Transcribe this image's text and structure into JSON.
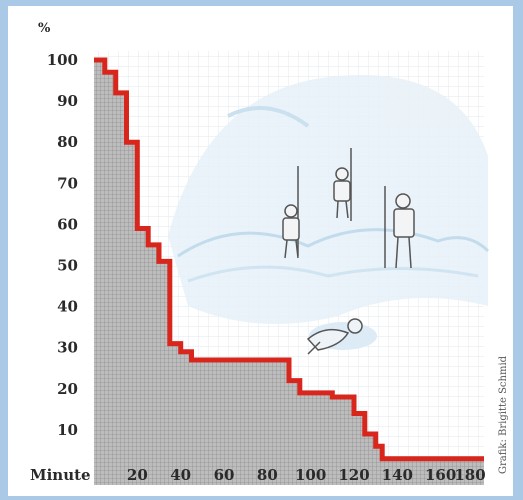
{
  "chart_data": {
    "type": "line",
    "style": "step",
    "title": "",
    "xlabel": "Minute",
    "ylabel": "%",
    "xlim": [
      0,
      180
    ],
    "ylim": [
      0,
      100
    ],
    "x_ticks": [
      20,
      40,
      60,
      80,
      100,
      120,
      140,
      160,
      180
    ],
    "y_ticks": [
      10,
      20,
      30,
      40,
      50,
      60,
      70,
      80,
      90,
      100
    ],
    "grid": true,
    "series": [
      {
        "color": "#d8261c",
        "fill": "#9c9c9c",
        "points": [
          [
            0,
            100
          ],
          [
            5,
            100
          ],
          [
            5,
            97
          ],
          [
            10,
            97
          ],
          [
            10,
            92
          ],
          [
            15,
            92
          ],
          [
            15,
            80
          ],
          [
            20,
            80
          ],
          [
            20,
            59
          ],
          [
            25,
            59
          ],
          [
            25,
            55
          ],
          [
            30,
            55
          ],
          [
            30,
            51
          ],
          [
            35,
            51
          ],
          [
            35,
            31
          ],
          [
            40,
            31
          ],
          [
            40,
            29
          ],
          [
            45,
            29
          ],
          [
            45,
            27
          ],
          [
            90,
            27
          ],
          [
            90,
            22
          ],
          [
            95,
            22
          ],
          [
            95,
            19
          ],
          [
            110,
            19
          ],
          [
            110,
            18
          ],
          [
            120,
            18
          ],
          [
            120,
            14
          ],
          [
            125,
            14
          ],
          [
            125,
            9
          ],
          [
            130,
            9
          ],
          [
            130,
            6
          ],
          [
            133,
            6
          ],
          [
            133,
            3
          ],
          [
            180,
            3
          ]
        ]
      }
    ]
  },
  "credit": "Grafik: Brigitte Schmid"
}
